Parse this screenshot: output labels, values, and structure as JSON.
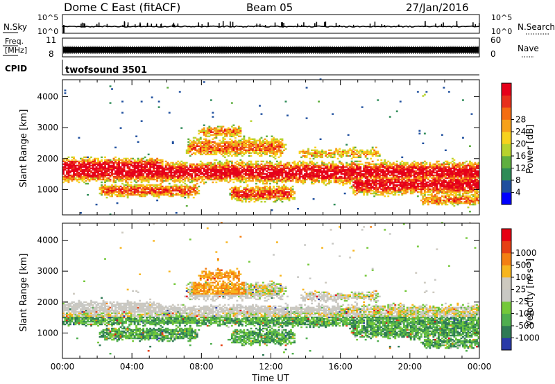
{
  "header": {
    "station": "Dome C East (fitACF)",
    "beam": "Beam 05",
    "date": "27/Jan/2016"
  },
  "top_panels": {
    "nsky_label": "N.Sky",
    "nsky_ticks": [
      "10^5",
      "10^0"
    ],
    "nsearch_label": "N.Search",
    "nsearch_ticks": [
      "10^5",
      "10^0"
    ],
    "freq_label": [
      "Freq.",
      "[MHz]"
    ],
    "freq_ticks": [
      "11",
      "8"
    ],
    "nave_label": "Nave",
    "nave_ticks": [
      "60",
      "0"
    ],
    "cpid_label": "CPID",
    "cpid_value": "twofsound 3501"
  },
  "colors": {
    "power": [
      "#0000ff",
      "#1f4f9e",
      "#2e8b57",
      "#5faf3f",
      "#b7d22d",
      "#f7d21c",
      "#f7a11a",
      "#f46d12",
      "#e8301c",
      "#e6001a"
    ],
    "velocity": [
      "#2a3aa8",
      "#2f7a55",
      "#4fae4f",
      "#74c83a",
      "#c8c8c4",
      "#cdc9bf",
      "#f7b51e",
      "#f47f12",
      "#e64014",
      "#e60012"
    ]
  },
  "chart_data": [
    {
      "type": "heatmap",
      "name": "Power",
      "ylabel": "Slant Range [km]",
      "xlabel": "",
      "yticks": [
        "1000",
        "2000",
        "3000",
        "4000"
      ],
      "ylim": [
        180,
        4550
      ],
      "xlim": [
        "00:00",
        "24:00"
      ],
      "colorbar_label": "Power [dB]",
      "colorbar_ticks": [
        "4",
        "8",
        "12",
        "16",
        "20",
        "24",
        "28"
      ]
    },
    {
      "type": "heatmap",
      "name": "Velocity",
      "ylabel": "Slant Range [km]",
      "xlabel": "Time UT",
      "yticks": [
        "1000",
        "2000",
        "3000",
        "4000"
      ],
      "ylim": [
        180,
        4550
      ],
      "xlim": [
        "00:00",
        "24:00"
      ],
      "xticks": [
        "00:00",
        "04:00",
        "08:00",
        "12:00",
        "16:00",
        "20:00",
        "00:00"
      ],
      "colorbar_label": "Velocity [m s^-1]",
      "colorbar_ticks": [
        "1000",
        "500",
        "100",
        "25",
        "-25",
        "-100",
        "-500",
        "-1000"
      ]
    }
  ]
}
